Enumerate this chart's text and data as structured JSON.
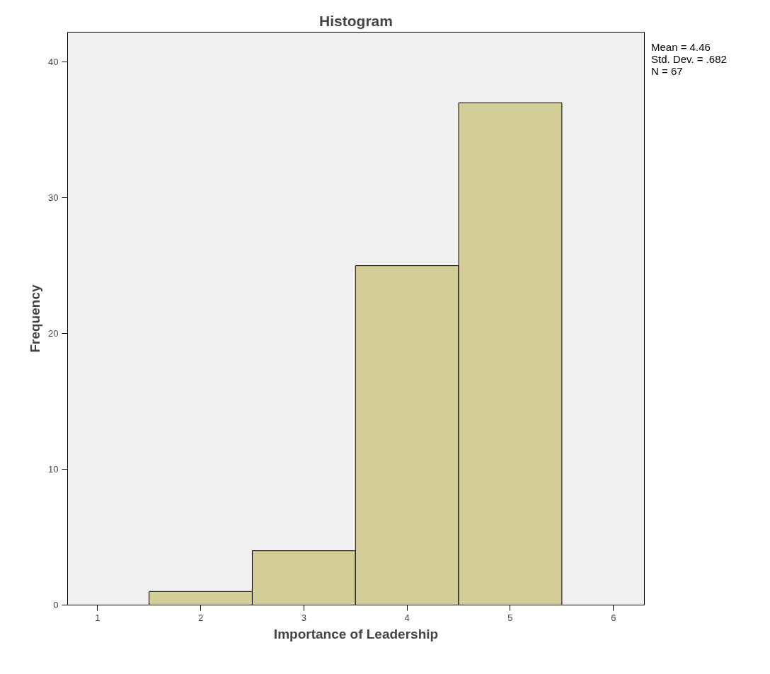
{
  "chart_data": {
    "type": "histogram",
    "title": "Histogram",
    "xlabel": "Importance of Leadership",
    "ylabel": "Frequency",
    "bins": [
      1.5,
      2.5,
      3.5,
      4.5,
      5.5
    ],
    "values": [
      1,
      4,
      25,
      37
    ],
    "color": "#d3ce98",
    "xlim": [
      0.71,
      6.3
    ],
    "ylim": [
      0,
      42.2
    ],
    "xticks": [
      1,
      2,
      3,
      4,
      5,
      6
    ],
    "yticks": [
      0,
      10,
      20,
      30,
      40
    ],
    "annotations": [
      "Mean = 4.46",
      "Std. Dev. = .682",
      "N = 67"
    ],
    "grid": false
  }
}
